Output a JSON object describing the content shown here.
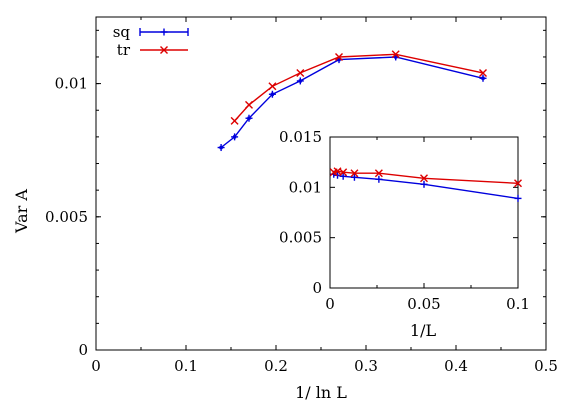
{
  "chart_data": [
    {
      "type": "line",
      "title": "",
      "xlabel": "1/ ln L",
      "ylabel": "Var A",
      "xlim": [
        0,
        0.5
      ],
      "ylim": [
        0,
        0.0125
      ],
      "xticks": [
        0,
        0.1,
        0.2,
        0.3,
        0.4,
        0.5
      ],
      "xtick_labels": [
        "0",
        "0.1",
        "0.2",
        "0.3",
        "0.4",
        "0.5"
      ],
      "yticks": [
        0,
        0.005,
        0.01
      ],
      "ytick_labels": [
        "0",
        "0.005",
        "0.01"
      ],
      "grid": false,
      "legend_position": "top-left",
      "series": [
        {
          "name": "sq",
          "color": "#0000dd",
          "marker": "plus-with-errorbars",
          "x": [
            0.139,
            0.154,
            0.17,
            0.196,
            0.227,
            0.27,
            0.333,
            0.43
          ],
          "y": [
            0.0076,
            0.008,
            0.0087,
            0.0096,
            0.0101,
            0.0109,
            0.011,
            0.0102
          ]
        },
        {
          "name": "tr",
          "color": "#dd0000",
          "marker": "x",
          "x": [
            0.154,
            0.17,
            0.196,
            0.227,
            0.27,
            0.333,
            0.43
          ],
          "y": [
            0.0086,
            0.0092,
            0.0099,
            0.0104,
            0.011,
            0.0111,
            0.0104
          ]
        }
      ]
    },
    {
      "type": "line",
      "title": "",
      "xlabel": "1/L",
      "ylabel": "",
      "xlim": [
        0,
        0.1
      ],
      "ylim": [
        0,
        0.015
      ],
      "xticks": [
        0,
        0.05,
        0.1
      ],
      "xtick_labels": [
        "0",
        "0.05",
        "0.1"
      ],
      "yticks": [
        0,
        0.005,
        0.01,
        0.015
      ],
      "ytick_labels": [
        "0",
        "0.005",
        "0.01",
        "0.015"
      ],
      "grid": false,
      "series": [
        {
          "name": "sq",
          "color": "#0000dd",
          "marker": "plus",
          "x": [
            0.002,
            0.004,
            0.007,
            0.013,
            0.026,
            0.05,
            0.1
          ],
          "y": [
            0.0113,
            0.0112,
            0.0111,
            0.011,
            0.0108,
            0.0103,
            0.0089
          ]
        },
        {
          "name": "tr",
          "color": "#dd0000",
          "marker": "x",
          "x": [
            0.002,
            0.004,
            0.007,
            0.013,
            0.026,
            0.05,
            0.1
          ],
          "y": [
            0.0115,
            0.0116,
            0.0115,
            0.0114,
            0.0114,
            0.0109,
            0.0104
          ]
        }
      ]
    }
  ]
}
